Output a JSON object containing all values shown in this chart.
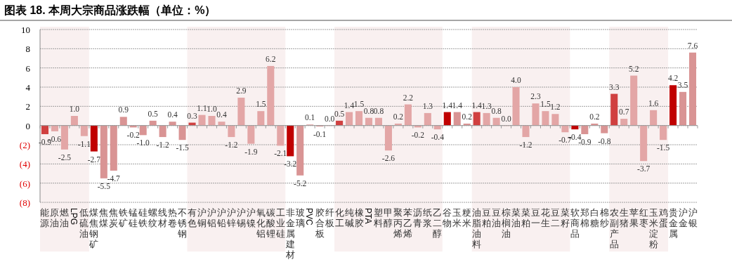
{
  "chart_data": {
    "type": "bar",
    "title": "图表 18. 本周大宗商品涨跌幅（单位：%）",
    "categories": [
      "能源",
      "原油",
      "燃油",
      "LPG",
      "低硫油",
      "煤焦钢矿",
      "焦煤",
      "焦炭",
      "铁矿",
      "锰硅",
      "硅铁",
      "螺纹",
      "线材",
      "热卷",
      "不锈钢",
      "有色",
      "沪铜",
      "沪铝",
      "沪铅",
      "沪锌",
      "沪锡",
      "沪镍",
      "氧化铝",
      "碳酸锂",
      "工业硅",
      "非金属建材",
      "玻璃",
      "PVC",
      "胶合板",
      "纤板",
      "化工",
      "纯碱",
      "橡胶",
      "PTA",
      "塑料",
      "甲醇",
      "聚丙烯",
      "苯乙烯",
      "沥青",
      "纸浆",
      "乙二醇",
      "谷物",
      "玉米",
      "粳米",
      "油脂油料",
      "豆粕",
      "豆油",
      "棕榈油",
      "菜油",
      "菜粕",
      "豆一",
      "花生",
      "豆二",
      "菜籽",
      "软商品",
      "郑棉",
      "白糖",
      "棉纱",
      "农副产品",
      "生猪",
      "苹果",
      "红枣",
      "玉米淀粉",
      "鸡蛋",
      "贵金属",
      "沪金",
      "沪银"
    ],
    "values": [
      -0.9,
      -0.6,
      -2.5,
      1.0,
      -1.1,
      -2.7,
      -5.5,
      -4.7,
      0.9,
      -0.2,
      -1.0,
      0.5,
      -1.2,
      0.4,
      -1.5,
      0.3,
      1.1,
      1.0,
      0.4,
      -1.2,
      2.9,
      -1.9,
      1.5,
      6.2,
      -2.1,
      -3.2,
      -5.2,
      0.1,
      -0.1,
      0.0,
      0.5,
      1.4,
      1.5,
      0.8,
      0.8,
      -2.6,
      0.2,
      2.2,
      -0.2,
      1.3,
      -0.4,
      1.4,
      1.4,
      0.2,
      1.4,
      1.3,
      0.8,
      0.0,
      4.0,
      -1.2,
      2.3,
      1.5,
      1.2,
      -0.7,
      -0.4,
      -0.9,
      0.2,
      -0.8,
      3.3,
      0.7,
      5.2,
      -3.7,
      1.6,
      -1.5,
      4.2,
      3.5,
      7.6
    ],
    "value_labels": [
      "-0.9",
      "-0.6",
      "-2.5",
      "1.0",
      "-1.1",
      "-2.7",
      "-5.5",
      "-4.7",
      "0.9",
      "-0.2",
      "-1.0",
      "0.5",
      "-1.2",
      "0.4",
      "-1.5",
      "0.3",
      "1.1",
      "1.0",
      "0.4",
      "-1.2",
      "2.9",
      "-1.9",
      "1.5",
      "6.2",
      "-2.1",
      "-3.2",
      "-5.2",
      "0.1",
      "-0.1",
      "0.0",
      "0.5",
      "1.4",
      "1.5",
      "0.8",
      "0.8",
      "-2.6",
      "0.2",
      "2.2",
      "-0.2",
      "1.3",
      "-0.4",
      "1.4",
      "1.4",
      "0.2",
      "1.4",
      "1.3",
      "0.8",
      "0.0",
      "4.0",
      "-1.2",
      "2.3",
      "1.5",
      "1.2",
      "-0.7",
      "-0.4",
      "-0.9",
      "0.2",
      "-0.8",
      "3.3",
      "0.7",
      "5.2",
      "-3.7",
      "1.6",
      "-1.5",
      "4.2",
      "3.5",
      "7.6"
    ],
    "colors": [
      "#d04040",
      "#e3a6a6",
      "#e3a6a6",
      "#e3a6a6",
      "#e3a6a6",
      "#c00000",
      "#d99494",
      "#d99494",
      "#d99494",
      "#d99494",
      "#d99494",
      "#d99494",
      "#d99494",
      "#d99494",
      "#d99494",
      "#d04040",
      "#e3a6a6",
      "#e3a6a6",
      "#e3a6a6",
      "#e3a6a6",
      "#e3a6a6",
      "#e3a6a6",
      "#e3a6a6",
      "#e3a6a6",
      "#e3a6a6",
      "#c00000",
      "#d99494",
      "#d99494",
      "#d99494",
      "#d99494",
      "#d04040",
      "#e3a6a6",
      "#e3a6a6",
      "#e3a6a6",
      "#e3a6a6",
      "#e3a6a6",
      "#e3a6a6",
      "#e3a6a6",
      "#e3a6a6",
      "#e3a6a6",
      "#e3a6a6",
      "#c00000",
      "#d99494",
      "#d99494",
      "#d04040",
      "#e3a6a6",
      "#e3a6a6",
      "#e3a6a6",
      "#e3a6a6",
      "#e3a6a6",
      "#e3a6a6",
      "#e3a6a6",
      "#e3a6a6",
      "#e3a6a6",
      "#c00000",
      "#d99494",
      "#d99494",
      "#d99494",
      "#d04040",
      "#e3a6a6",
      "#e3a6a6",
      "#e3a6a6",
      "#e3a6a6",
      "#e3a6a6",
      "#c00000",
      "#d99494",
      "#d99494"
    ],
    "ylim": [
      -8,
      10
    ],
    "yticks": [
      {
        "value": -8,
        "label": "(8)"
      },
      {
        "value": -6,
        "label": "(6)"
      },
      {
        "value": -4,
        "label": "(4)"
      },
      {
        "value": -2,
        "label": "(2)"
      },
      0,
      2,
      4,
      6,
      8,
      10
    ],
    "grid": "y",
    "bands": [
      {
        "axis": "x",
        "from": "能源",
        "to": "低硫油",
        "color": "#f9f0f0"
      },
      {
        "axis": "x",
        "from": "有色",
        "to": "工业硅",
        "color": "#f9f0f0"
      },
      {
        "axis": "x",
        "from": "化工",
        "to": "乙二醇",
        "color": "#f9f0f0"
      },
      {
        "axis": "x",
        "from": "油脂油料",
        "to": "菜籽",
        "color": "#f9f0f0"
      },
      {
        "axis": "x",
        "from": "农副产品",
        "to": "鸡蛋",
        "color": "#f9f0f0"
      }
    ]
  }
}
